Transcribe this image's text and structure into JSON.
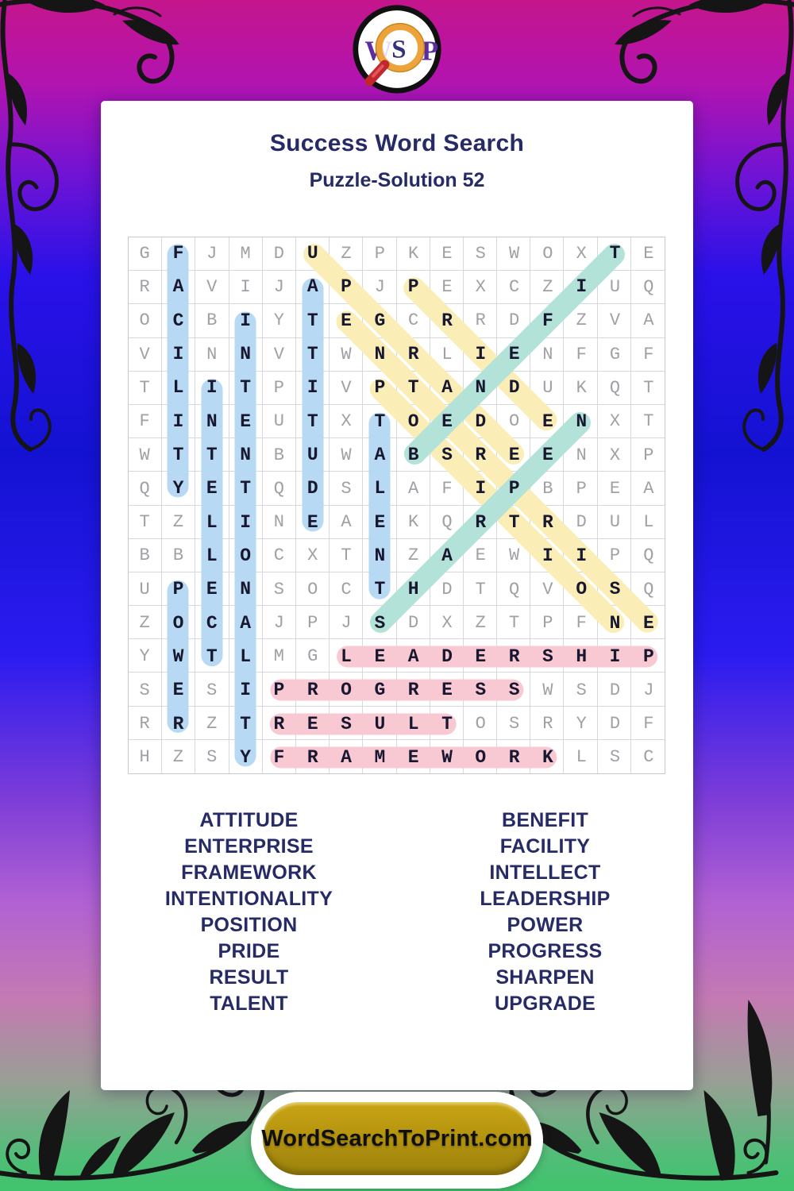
{
  "logo": {
    "w": "W",
    "s": "S",
    "p": "P"
  },
  "header": {
    "title": "Success Word Search",
    "subtitle": "Puzzle-Solution 52"
  },
  "grid": {
    "size": 16,
    "rows": [
      "GFJMDUZPKESWOXTE",
      "RAVIJAPJPEXCZIUQ",
      "OCBIYTEGCRRDFZVA",
      "VINNVTWNRLIENFGF",
      "TLITPIVPTANDUKQT",
      "FINEUTXTOEDOENXT",
      "WTTNBUWABSREENXP",
      "QYETQDSLAFIPBPEA",
      "TZLINEAEKQRTRDUL",
      "BBLOCXTNZAEWIIPQ",
      "UPENSOCTHDTQVOSQ",
      "ZOCAJPJSDXZTPFNE",
      "YWTLMGLEADERSHIP",
      "SESIPROGRESSWSDJ",
      "RRZTRESULTOSRYDF",
      "HZSYFRAMEWORKLSC"
    ]
  },
  "solutions": [
    {
      "word": "UPGRADE",
      "row": 1,
      "col": 6,
      "dir": "down-right",
      "color": "yellow"
    },
    {
      "word": "PRIDE",
      "row": 2,
      "col": 9,
      "dir": "down-right",
      "color": "yellow"
    },
    {
      "word": "ENTERPRISE",
      "row": 3,
      "col": 7,
      "dir": "down-right",
      "color": "yellow"
    },
    {
      "word": "POSITION",
      "row": 5,
      "col": 8,
      "dir": "down-right",
      "color": "yellow"
    },
    {
      "word": "FACILITY",
      "row": 1,
      "col": 2,
      "dir": "down",
      "color": "blue"
    },
    {
      "word": "POWER",
      "row": 11,
      "col": 2,
      "dir": "down",
      "color": "blue"
    },
    {
      "word": "INTELLECT",
      "row": 5,
      "col": 3,
      "dir": "down",
      "color": "blue"
    },
    {
      "word": "INTENTIONALITY",
      "row": 3,
      "col": 4,
      "dir": "down",
      "color": "blue"
    },
    {
      "word": "ATTITUDE",
      "row": 2,
      "col": 6,
      "dir": "down",
      "color": "blue"
    },
    {
      "word": "TALENT",
      "row": 6,
      "col": 8,
      "dir": "down",
      "color": "blue"
    },
    {
      "word": "BENEFIT",
      "row": 7,
      "col": 9,
      "dir": "up-right",
      "color": "teal"
    },
    {
      "word": "SHARPEN",
      "row": 12,
      "col": 8,
      "dir": "up-right",
      "color": "teal"
    },
    {
      "word": "LEADERSHIP",
      "row": 13,
      "col": 7,
      "dir": "right",
      "color": "pink"
    },
    {
      "word": "PROGRESS",
      "row": 14,
      "col": 5,
      "dir": "right",
      "color": "pink"
    },
    {
      "word": "RESULT",
      "row": 15,
      "col": 5,
      "dir": "right",
      "color": "pink"
    },
    {
      "word": "FRAMEWORK",
      "row": 16,
      "col": 5,
      "dir": "right",
      "color": "pink"
    }
  ],
  "highlight_colors": {
    "blue": "#b7d9f3",
    "yellow": "#faeeb6",
    "teal": "#b3e2d8",
    "pink": "#f8c9d3"
  },
  "word_list": {
    "left": [
      "ATTITUDE",
      "ENTERPRISE",
      "FRAMEWORK",
      "INTENTIONALITY",
      "POSITION",
      "PRIDE",
      "RESULT",
      "TALENT"
    ],
    "right": [
      "BENEFIT",
      "FACILITY",
      "INTELLECT",
      "LEADERSHIP",
      "POWER",
      "PROGRESS",
      "SHARPEN",
      "UPGRADE"
    ]
  },
  "footer": {
    "button_label": "WordSearchToPrint.com"
  }
}
